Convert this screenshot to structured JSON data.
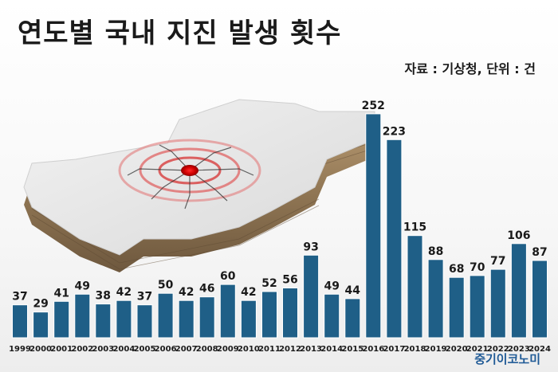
{
  "header": {
    "title": "연도별 국내 지진 발생 횟수",
    "source": "자료 : 기상청, 단위 : 건"
  },
  "footer": {
    "brand": "중기이코노미"
  },
  "illustration": {
    "icon": "korea-map-earthquake-icon"
  },
  "colors": {
    "bar": "#1f5f87",
    "bar_highlight": "#2a7fb0",
    "text": "#1a1a1a",
    "brand": "#1f5a96"
  },
  "chart_data": {
    "type": "bar",
    "title": "연도별 국내 지진 발생 횟수",
    "categories": [
      "1999",
      "2000",
      "2001",
      "2002",
      "2003",
      "2004",
      "2005",
      "2006",
      "2007",
      "2008",
      "2009",
      "2010",
      "2011",
      "2012",
      "2013",
      "2014",
      "2015",
      "2016",
      "2017",
      "2018",
      "2019",
      "2020",
      "2021",
      "2022",
      "2023",
      "2024"
    ],
    "values": [
      37,
      29,
      41,
      49,
      38,
      42,
      37,
      50,
      42,
      46,
      60,
      42,
      52,
      56,
      93,
      49,
      44,
      252,
      223,
      115,
      88,
      68,
      70,
      77,
      106,
      87
    ],
    "xlabel": "",
    "ylabel": "",
    "ylim": [
      0,
      260
    ],
    "grid": false,
    "legend": "none"
  }
}
